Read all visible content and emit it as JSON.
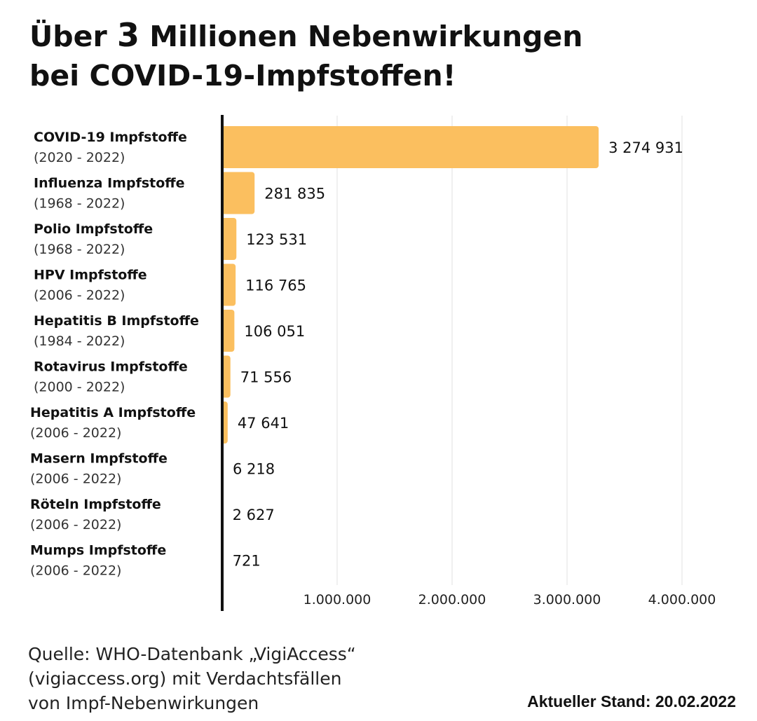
{
  "title": {
    "before": "Über ",
    "number": "3",
    "after": " Millionen Nebenwirkungen",
    "line2": "bei COVID-19-Impfstoffen!"
  },
  "chart_data": {
    "type": "bar",
    "orientation": "horizontal",
    "categories": [
      "COVID-19 Impfstoffe",
      "Influenza Impfstoffe",
      "Polio Impfstoffe",
      "HPV Impfstoffe",
      "Hepatitis B Impfstoffe",
      "Rotavirus Impfstoffe",
      "Hepatitis A Impfstoffe",
      "Masern Impfstoffe",
      "Röteln Impfstoffe",
      "Mumps Impfstoffe"
    ],
    "periods": [
      "(2020 - 2022)",
      "(1968 - 2022)",
      "(1968 - 2022)",
      "(2006 - 2022)",
      "(1984 - 2022)",
      "(2000 - 2022)",
      "(2006 - 2022)",
      "(2006 - 2022)",
      "(2006 - 2022)",
      "(2006 - 2022)"
    ],
    "values": [
      3274931,
      281835,
      123531,
      116765,
      106051,
      71556,
      47641,
      6218,
      2627,
      721
    ],
    "value_labels": [
      "3 274 931",
      "281 835",
      "123 531",
      "116 765",
      "106 051",
      "71 556",
      "47 641",
      "6 218",
      "2 627",
      "721"
    ],
    "xlim": [
      0,
      4000000
    ],
    "x_ticks": [
      1000000,
      2000000,
      3000000,
      4000000
    ],
    "x_tick_labels": [
      "1.000.000",
      "2.000.000",
      "3.000.000",
      "4.000.000"
    ],
    "grid": true,
    "legend": "none",
    "bar_color": "#fbbf5f",
    "grid_color": "#e2e2e2",
    "axis_color": "#111111"
  },
  "source": {
    "line1": "Quelle: WHO-Datenbank „VigiAccess“",
    "line2": "(vigiaccess.org) mit Verdachtsfällen",
    "line3": "von Impf-Nebenwirkungen"
  },
  "stand": "Aktueller Stand: 20.02.2022"
}
